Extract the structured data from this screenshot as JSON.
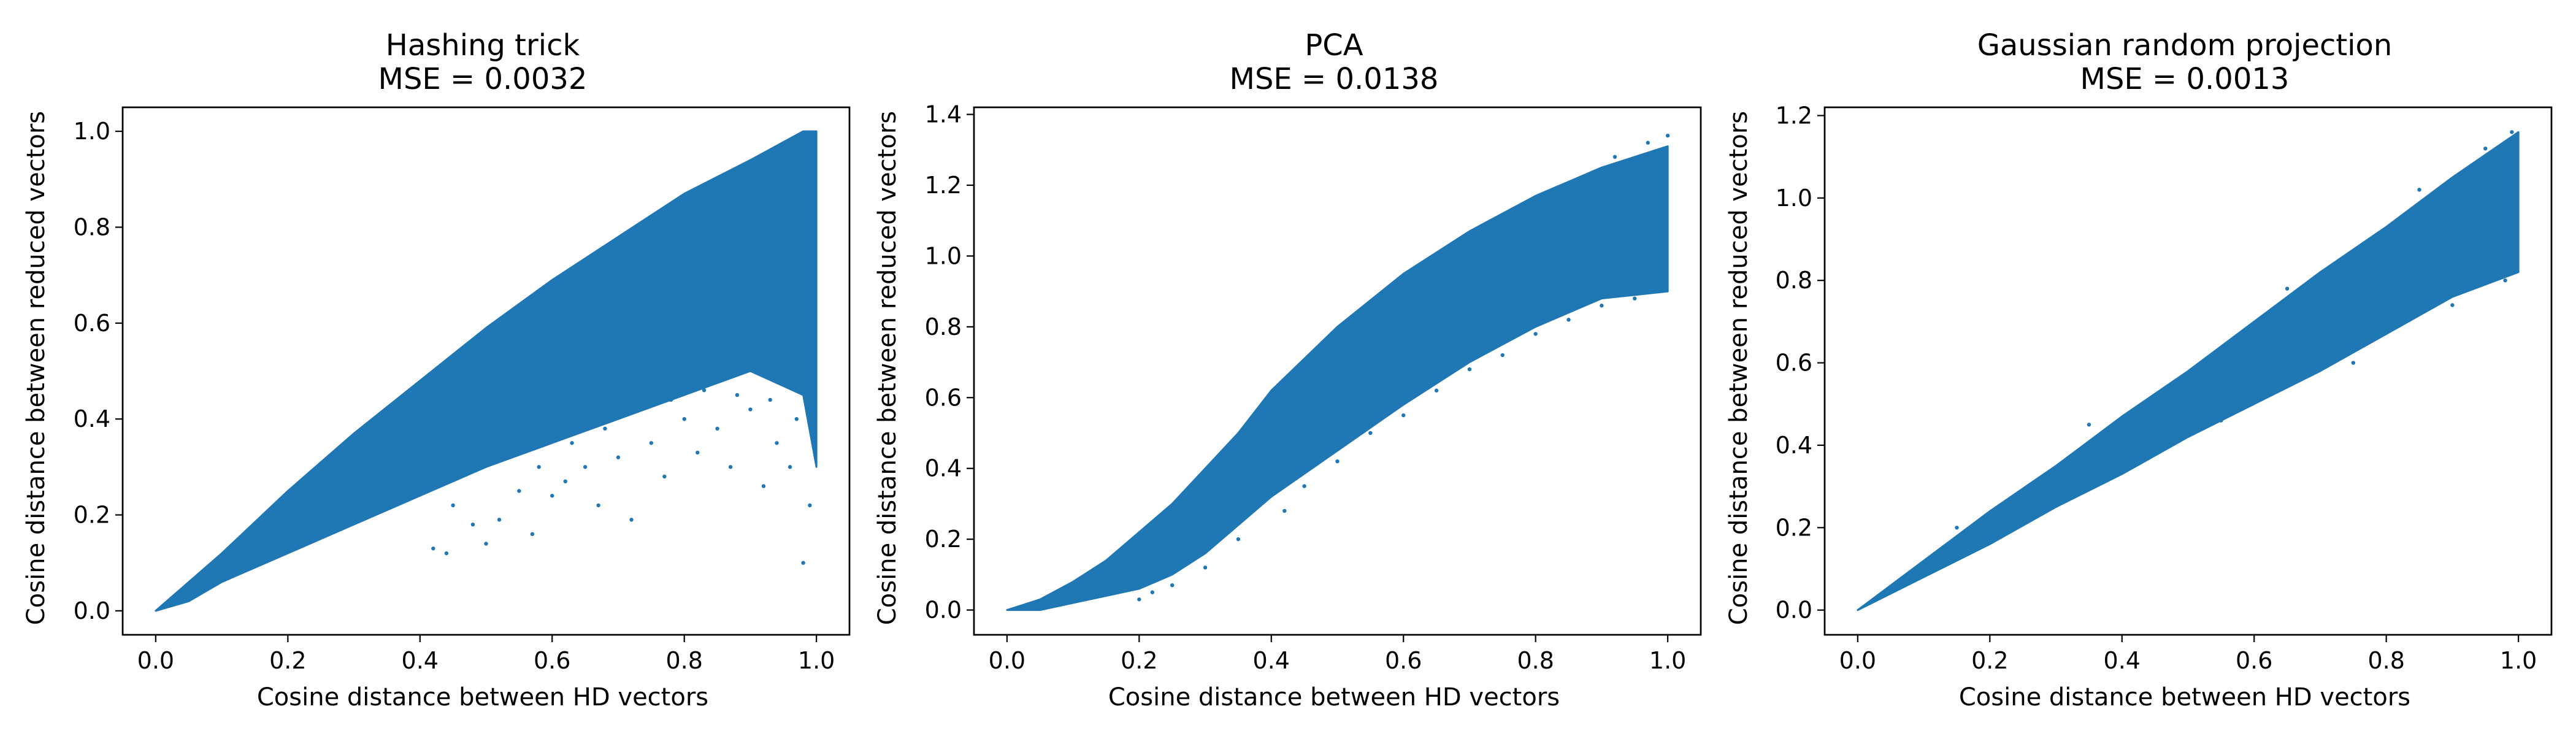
{
  "figure": {
    "background": "#ffffff",
    "point_color": "#1f77b4"
  },
  "chart_data": [
    {
      "type": "scatter",
      "title": "Hashing trick",
      "subtitle": "MSE = 0.0032",
      "xlabel": "Cosine distance between HD vectors",
      "ylabel": "Cosine distance between reduced vectors",
      "xlim": [
        -0.05,
        1.05
      ],
      "ylim": [
        -0.05,
        1.05
      ],
      "xticks": [
        0.0,
        0.2,
        0.4,
        0.6,
        0.8,
        1.0
      ],
      "xtick_labels": [
        "0.0",
        "0.2",
        "0.4",
        "0.6",
        "0.8",
        "1.0"
      ],
      "yticks": [
        0.0,
        0.2,
        0.4,
        0.6,
        0.8,
        1.0
      ],
      "ytick_labels": [
        "0.0",
        "0.2",
        "0.4",
        "0.6",
        "0.8",
        "1.0"
      ],
      "grid": false,
      "color": "#1f77b4",
      "dense_band": [
        [
          0.0,
          0.0,
          0.0
        ],
        [
          0.05,
          0.02,
          0.06
        ],
        [
          0.1,
          0.06,
          0.12
        ],
        [
          0.2,
          0.12,
          0.25
        ],
        [
          0.3,
          0.18,
          0.37
        ],
        [
          0.4,
          0.24,
          0.48
        ],
        [
          0.5,
          0.3,
          0.59
        ],
        [
          0.6,
          0.35,
          0.69
        ],
        [
          0.7,
          0.4,
          0.78
        ],
        [
          0.8,
          0.45,
          0.87
        ],
        [
          0.9,
          0.5,
          0.94
        ],
        [
          0.98,
          0.45,
          1.0
        ],
        [
          1.0,
          0.3,
          1.0
        ]
      ],
      "points": [
        [
          0.45,
          0.22
        ],
        [
          0.48,
          0.18
        ],
        [
          0.5,
          0.14
        ],
        [
          0.52,
          0.19
        ],
        [
          0.55,
          0.25
        ],
        [
          0.57,
          0.16
        ],
        [
          0.6,
          0.24
        ],
        [
          0.62,
          0.27
        ],
        [
          0.65,
          0.3
        ],
        [
          0.67,
          0.22
        ],
        [
          0.7,
          0.32
        ],
        [
          0.72,
          0.19
        ],
        [
          0.75,
          0.35
        ],
        [
          0.77,
          0.28
        ],
        [
          0.8,
          0.4
        ],
        [
          0.82,
          0.33
        ],
        [
          0.85,
          0.38
        ],
        [
          0.87,
          0.3
        ],
        [
          0.9,
          0.42
        ],
        [
          0.92,
          0.26
        ],
        [
          0.94,
          0.35
        ],
        [
          0.96,
          0.3
        ],
        [
          0.98,
          0.1
        ],
        [
          0.99,
          0.22
        ],
        [
          0.42,
          0.13
        ],
        [
          0.44,
          0.12
        ],
        [
          0.58,
          0.3
        ],
        [
          0.63,
          0.35
        ],
        [
          0.68,
          0.38
        ],
        [
          0.73,
          0.42
        ],
        [
          0.78,
          0.44
        ],
        [
          0.83,
          0.46
        ],
        [
          0.88,
          0.45
        ],
        [
          0.93,
          0.44
        ],
        [
          0.97,
          0.4
        ]
      ]
    },
    {
      "type": "scatter",
      "title": "PCA",
      "subtitle": "MSE = 0.0138",
      "xlabel": "Cosine distance between HD vectors",
      "ylabel": "Cosine distance between reduced vectors",
      "xlim": [
        -0.05,
        1.05
      ],
      "ylim": [
        -0.07,
        1.42
      ],
      "xticks": [
        0.0,
        0.2,
        0.4,
        0.6,
        0.8,
        1.0
      ],
      "xtick_labels": [
        "0.0",
        "0.2",
        "0.4",
        "0.6",
        "0.8",
        "1.0"
      ],
      "yticks": [
        0.0,
        0.2,
        0.4,
        0.6,
        0.8,
        1.0,
        1.2,
        1.4
      ],
      "ytick_labels": [
        "0.0",
        "0.2",
        "0.4",
        "0.6",
        "0.8",
        "1.0",
        "1.2",
        "1.4"
      ],
      "grid": false,
      "color": "#1f77b4",
      "dense_band": [
        [
          0.0,
          0.0,
          0.0
        ],
        [
          0.05,
          0.0,
          0.03
        ],
        [
          0.1,
          0.02,
          0.08
        ],
        [
          0.15,
          0.04,
          0.14
        ],
        [
          0.2,
          0.06,
          0.22
        ],
        [
          0.25,
          0.1,
          0.3
        ],
        [
          0.3,
          0.16,
          0.4
        ],
        [
          0.35,
          0.24,
          0.5
        ],
        [
          0.4,
          0.32,
          0.62
        ],
        [
          0.5,
          0.45,
          0.8
        ],
        [
          0.6,
          0.58,
          0.95
        ],
        [
          0.7,
          0.7,
          1.07
        ],
        [
          0.8,
          0.8,
          1.17
        ],
        [
          0.9,
          0.88,
          1.25
        ],
        [
          1.0,
          0.9,
          1.31
        ]
      ],
      "points": [
        [
          0.2,
          0.03
        ],
        [
          0.22,
          0.05
        ],
        [
          0.25,
          0.07
        ],
        [
          0.3,
          0.12
        ],
        [
          0.35,
          0.2
        ],
        [
          0.42,
          0.28
        ],
        [
          0.45,
          0.35
        ],
        [
          0.5,
          0.42
        ],
        [
          0.55,
          0.5
        ],
        [
          0.6,
          0.55
        ],
        [
          0.65,
          0.62
        ],
        [
          0.7,
          0.68
        ],
        [
          0.75,
          0.72
        ],
        [
          0.8,
          0.78
        ],
        [
          0.85,
          0.82
        ],
        [
          0.9,
          0.86
        ],
        [
          0.95,
          0.88
        ],
        [
          1.0,
          1.34
        ],
        [
          0.97,
          1.32
        ],
        [
          0.92,
          1.28
        ]
      ]
    },
    {
      "type": "scatter",
      "title": "Gaussian random projection",
      "subtitle": "MSE = 0.0013",
      "xlabel": "Cosine distance between HD vectors",
      "ylabel": "Cosine distance between reduced vectors",
      "xlim": [
        -0.05,
        1.05
      ],
      "ylim": [
        -0.06,
        1.22
      ],
      "xticks": [
        0.0,
        0.2,
        0.4,
        0.6,
        0.8,
        1.0
      ],
      "xtick_labels": [
        "0.0",
        "0.2",
        "0.4",
        "0.6",
        "0.8",
        "1.0"
      ],
      "yticks": [
        0.0,
        0.2,
        0.4,
        0.6,
        0.8,
        1.0,
        1.2
      ],
      "ytick_labels": [
        "0.0",
        "0.2",
        "0.4",
        "0.6",
        "0.8",
        "1.0",
        "1.2"
      ],
      "grid": false,
      "color": "#1f77b4",
      "dense_band": [
        [
          0.0,
          0.0,
          0.0
        ],
        [
          0.1,
          0.08,
          0.12
        ],
        [
          0.2,
          0.16,
          0.24
        ],
        [
          0.3,
          0.25,
          0.35
        ],
        [
          0.4,
          0.33,
          0.47
        ],
        [
          0.5,
          0.42,
          0.58
        ],
        [
          0.6,
          0.5,
          0.7
        ],
        [
          0.7,
          0.58,
          0.82
        ],
        [
          0.8,
          0.67,
          0.93
        ],
        [
          0.9,
          0.76,
          1.05
        ],
        [
          1.0,
          0.82,
          1.16
        ]
      ],
      "points": [
        [
          0.15,
          0.2
        ],
        [
          0.35,
          0.45
        ],
        [
          0.55,
          0.46
        ],
        [
          0.65,
          0.78
        ],
        [
          0.75,
          0.6
        ],
        [
          0.85,
          1.02
        ],
        [
          0.9,
          0.74
        ],
        [
          0.95,
          1.12
        ],
        [
          0.99,
          1.16
        ],
        [
          0.98,
          0.8
        ]
      ]
    }
  ]
}
